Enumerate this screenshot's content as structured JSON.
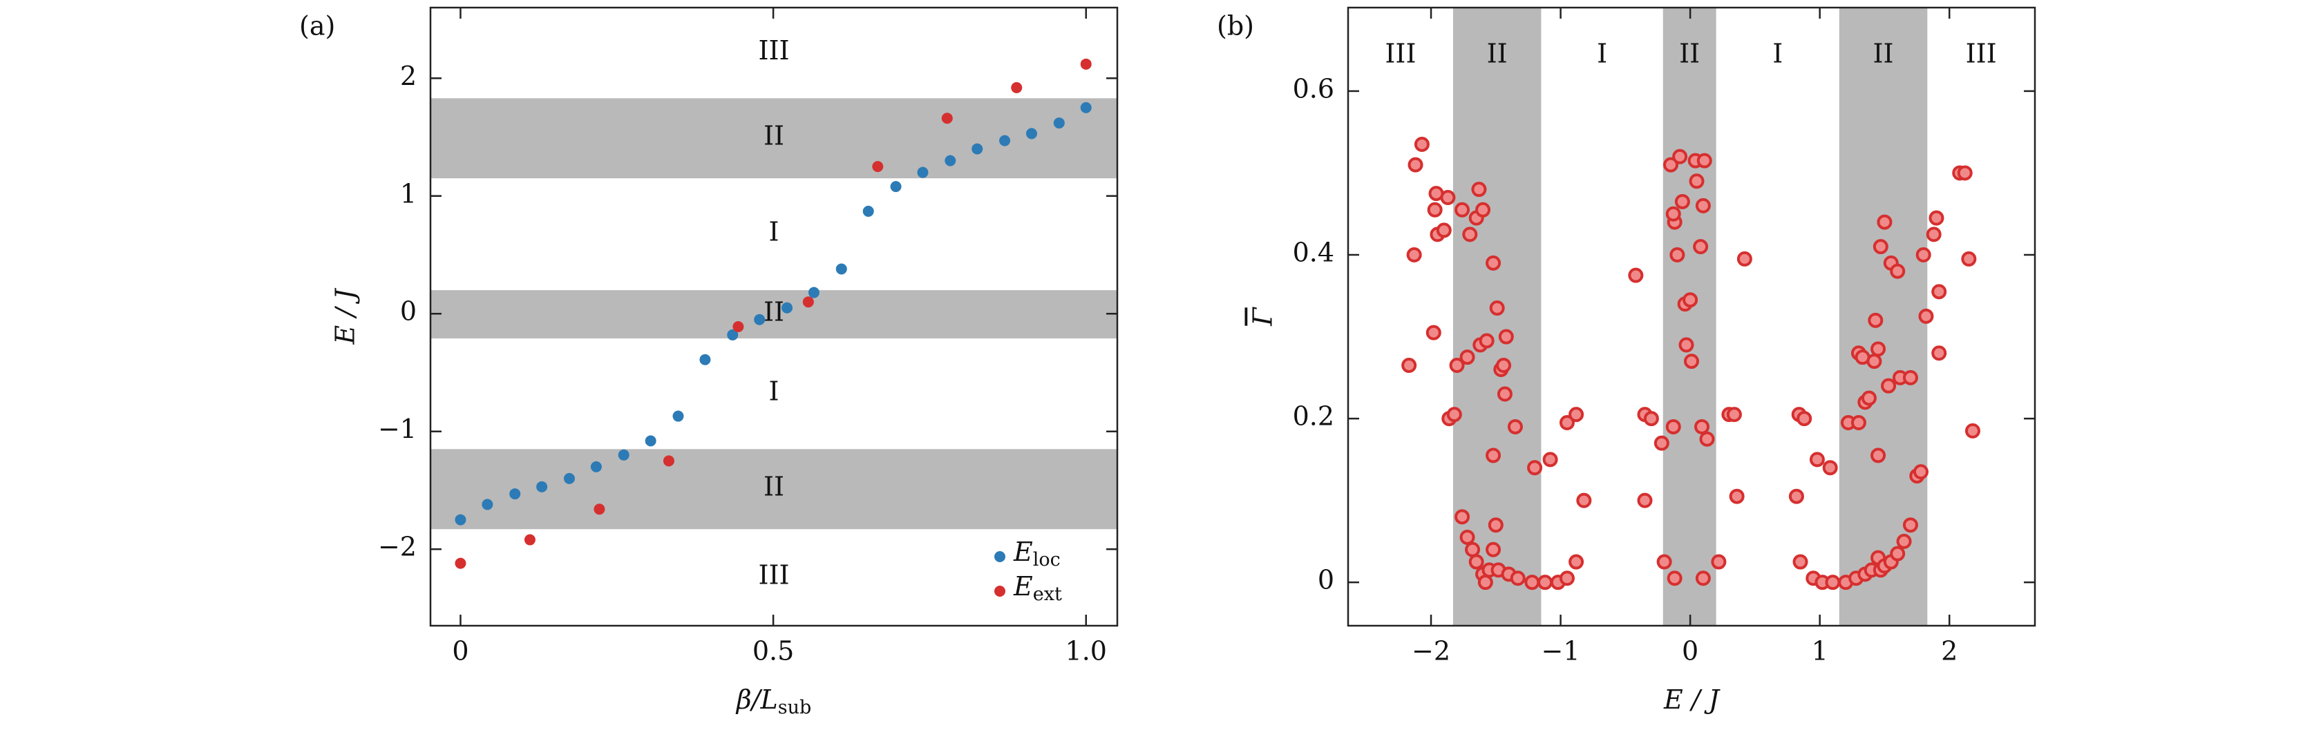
{
  "chart_data": [
    {
      "type": "scatter",
      "panel_label": "(a)",
      "xlabel": {
        "base": "β/L",
        "sub": "sub"
      },
      "ylabel": "E / J",
      "xlim": [
        -0.048,
        1.05
      ],
      "ylim": [
        -2.65,
        2.6
      ],
      "xticks": [
        0,
        0.5,
        {
          "value": 1.0,
          "label": "1.0"
        }
      ],
      "yticks": [
        {
          "value": -2,
          "label": "−2"
        },
        {
          "value": -1,
          "label": "−1"
        },
        0,
        1,
        2
      ],
      "band_axis": "y",
      "band_color": "#b9b9b9",
      "regions": [
        {
          "label": "III",
          "range": [
            1.83,
            2.6
          ],
          "shaded": false
        },
        {
          "label": "II",
          "range": [
            1.15,
            1.83
          ],
          "shaded": true
        },
        {
          "label": "I",
          "range": [
            0.2,
            1.15
          ],
          "shaded": false
        },
        {
          "label": "II",
          "range": [
            -0.21,
            0.2
          ],
          "shaded": true
        },
        {
          "label": "I",
          "range": [
            -1.15,
            -0.21
          ],
          "shaded": false
        },
        {
          "label": "II",
          "range": [
            -1.83,
            -1.15
          ],
          "shaded": true
        },
        {
          "label": "III",
          "range": [
            -2.65,
            -1.83
          ],
          "shaded": false
        }
      ],
      "legend": "lower right",
      "series": [
        {
          "name": {
            "base": "E",
            "sub": "loc"
          },
          "color": "#2c7bb6",
          "x": [
            0,
            0.043,
            0.087,
            0.13,
            0.174,
            0.217,
            0.261,
            0.304,
            0.348,
            0.391,
            0.435,
            0.478,
            0.522,
            0.565,
            0.609,
            0.652,
            0.696,
            0.739,
            0.783,
            0.826,
            0.87,
            0.913,
            0.957,
            1.0
          ],
          "values": [
            -1.75,
            -1.62,
            -1.53,
            -1.47,
            -1.4,
            -1.3,
            -1.2,
            -1.08,
            -0.87,
            -0.39,
            -0.18,
            -0.05,
            0.05,
            0.18,
            0.38,
            0.87,
            1.08,
            1.2,
            1.3,
            1.4,
            1.47,
            1.53,
            1.62,
            1.75
          ]
        },
        {
          "name": {
            "base": "E",
            "sub": "ext"
          },
          "color": "#d62f2f",
          "x": [
            0,
            0.111,
            0.222,
            0.333,
            0.444,
            0.556,
            0.667,
            0.778,
            0.889,
            1.0
          ],
          "values": [
            -2.12,
            -1.92,
            -1.66,
            -1.25,
            -0.11,
            0.1,
            1.25,
            1.66,
            1.92,
            2.12
          ]
        }
      ]
    },
    {
      "type": "scatter",
      "panel_label": "(b)",
      "xlabel": {
        "base": "E / J"
      },
      "ylabel": "Γ",
      "xlim": [
        -2.64,
        2.66
      ],
      "ylim": [
        -0.053,
        0.702
      ],
      "xticks": [
        {
          "value": -2,
          "label": "−2"
        },
        {
          "value": -1,
          "label": "−1"
        },
        0,
        1,
        2
      ],
      "yticks": [
        0,
        0.2,
        0.4,
        0.6
      ],
      "band_axis": "x",
      "band_color": "#b9b9b9",
      "regions": [
        {
          "label": "III",
          "range": [
            -2.64,
            -1.83
          ],
          "shaded": false
        },
        {
          "label": "II",
          "range": [
            -1.83,
            -1.15
          ],
          "shaded": true
        },
        {
          "label": "I",
          "range": [
            -1.15,
            -0.21
          ],
          "shaded": false
        },
        {
          "label": "II",
          "range": [
            -0.21,
            0.2
          ],
          "shaded": true
        },
        {
          "label": "I",
          "range": [
            0.2,
            1.15
          ],
          "shaded": false
        },
        {
          "label": "II",
          "range": [
            1.15,
            1.83
          ],
          "shaded": true
        },
        {
          "label": "III",
          "range": [
            1.83,
            2.66
          ],
          "shaded": false
        }
      ],
      "series": [
        {
          "color": "#d62f2f",
          "fill": "#f08a8a",
          "x": [
            -2.17,
            -2.13,
            -2.12,
            -2.07,
            -1.98,
            -1.97,
            -1.96,
            -1.95,
            -1.9,
            -1.87,
            -1.86,
            -1.82,
            -1.8,
            -1.76,
            -1.72,
            -1.7,
            -1.65,
            -1.63,
            -1.6,
            -1.62,
            -1.57,
            -1.52,
            -1.49,
            -1.46,
            -1.44,
            -1.43,
            -1.42,
            -1.52,
            -1.35,
            -1.76,
            -1.72,
            -1.68,
            -1.65,
            -1.6,
            -1.58,
            -1.55,
            -1.52,
            -1.5,
            -1.48,
            -1.4,
            -1.33,
            -1.22,
            -1.12,
            -1.02,
            -0.95,
            -0.88,
            -1.2,
            -1.08,
            -0.95,
            -0.88,
            -0.82,
            -0.42,
            -0.35,
            -0.3,
            -0.35,
            -0.22,
            -0.2,
            -0.15,
            -0.12,
            -0.13,
            -0.1,
            -0.08,
            -0.06,
            -0.04,
            -0.03,
            0.0,
            0.01,
            0.04,
            0.05,
            0.08,
            0.1,
            0.11,
            0.09,
            0.13,
            -0.12,
            0.1,
            -0.13,
            0.22,
            0.3,
            0.34,
            0.36,
            0.42,
            0.82,
            0.84,
            0.88,
            0.85,
            0.95,
            1.02,
            1.1,
            1.2,
            1.28,
            1.35,
            1.4,
            1.45,
            1.47,
            1.5,
            1.55,
            1.6,
            1.65,
            1.7,
            0.98,
            1.08,
            1.22,
            1.3,
            1.33,
            1.35,
            1.38,
            1.42,
            1.43,
            1.45,
            1.47,
            1.5,
            1.53,
            1.55,
            1.6,
            1.62,
            1.7,
            1.75,
            1.78,
            1.8,
            1.82,
            1.88,
            1.9,
            1.92,
            1.92,
            2.08,
            2.12,
            2.15,
            2.18,
            1.3,
            1.45
          ],
          "values": [
            0.265,
            0.4,
            0.51,
            0.535,
            0.305,
            0.455,
            0.475,
            0.425,
            0.43,
            0.47,
            0.2,
            0.205,
            0.265,
            0.455,
            0.275,
            0.425,
            0.445,
            0.48,
            0.455,
            0.29,
            0.295,
            0.39,
            0.335,
            0.26,
            0.265,
            0.23,
            0.3,
            0.155,
            0.19,
            0.08,
            0.055,
            0.04,
            0.025,
            0.01,
            0.0,
            0.015,
            0.04,
            0.07,
            0.015,
            0.01,
            0.005,
            0.0,
            0.0,
            0.0,
            0.005,
            0.025,
            0.14,
            0.15,
            0.195,
            0.205,
            0.1,
            0.375,
            0.205,
            0.2,
            0.1,
            0.17,
            0.025,
            0.51,
            0.44,
            0.45,
            0.4,
            0.52,
            0.465,
            0.34,
            0.29,
            0.345,
            0.27,
            0.515,
            0.49,
            0.41,
            0.46,
            0.515,
            0.19,
            0.175,
            0.005,
            0.005,
            0.19,
            0.025,
            0.205,
            0.205,
            0.105,
            0.395,
            0.105,
            0.205,
            0.2,
            0.025,
            0.005,
            0.0,
            0.0,
            0.0,
            0.005,
            0.01,
            0.015,
            0.03,
            0.015,
            0.02,
            0.025,
            0.035,
            0.05,
            0.07,
            0.15,
            0.14,
            0.195,
            0.28,
            0.275,
            0.22,
            0.225,
            0.27,
            0.32,
            0.285,
            0.41,
            0.44,
            0.24,
            0.39,
            0.38,
            0.25,
            0.25,
            0.13,
            0.135,
            0.4,
            0.325,
            0.425,
            0.445,
            0.28,
            0.355,
            0.5,
            0.5,
            0.395,
            0.185,
            0.195,
            0.155
          ]
        }
      ]
    }
  ]
}
